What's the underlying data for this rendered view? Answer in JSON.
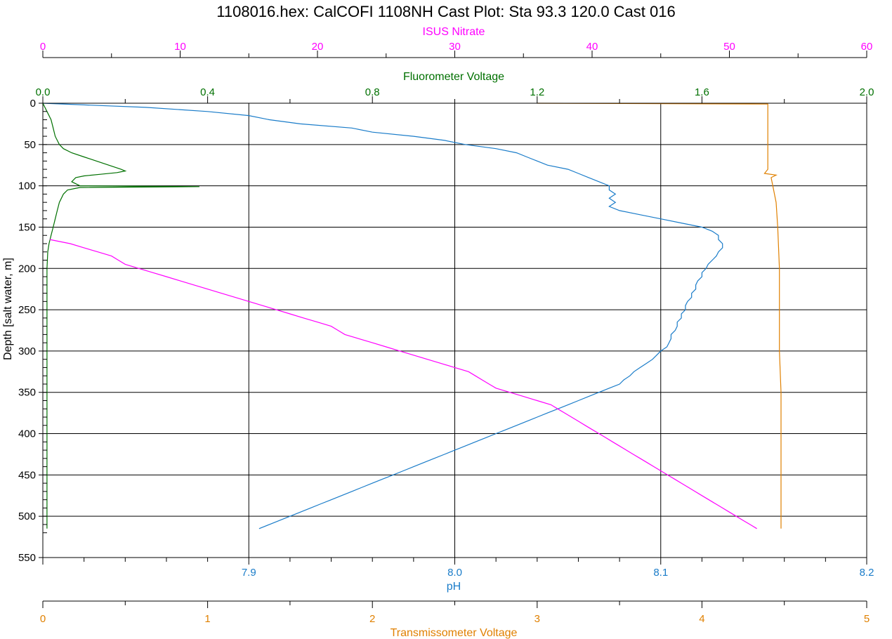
{
  "chart_data": {
    "type": "line",
    "title": "1108016.hex: CalCOFI 1108NH Cast Plot: Sta 93.3 120.0 Cast 016",
    "y_axis": {
      "label": "Depth [salt water, m]",
      "range": [
        0,
        550
      ],
      "ticks": [
        0,
        50,
        100,
        150,
        200,
        250,
        300,
        350,
        400,
        450,
        500,
        550
      ],
      "inverted": true
    },
    "x_axes": [
      {
        "name": "isus",
        "label": "ISUS Nitrate",
        "position": "top",
        "color": "#ff00ff",
        "range": [
          0,
          60
        ],
        "tick_labels": [
          "0",
          "10",
          "20",
          "30",
          "40",
          "50",
          "60"
        ]
      },
      {
        "name": "fluor",
        "label": "Fluorometer Voltage",
        "position": "top",
        "color": "#007000",
        "range": [
          0,
          2.0
        ],
        "tick_labels": [
          "0.0",
          "0.4",
          "0.8",
          "1.2",
          "1.6",
          "2.0"
        ]
      },
      {
        "name": "ph",
        "label": "pH",
        "position": "bottom",
        "color": "#1a7cc9",
        "range": [
          7.8,
          8.2
        ],
        "tick_labels": [
          "7.9",
          "8.0",
          "8.1",
          "8.2"
        ]
      },
      {
        "name": "trans",
        "label": "Transmissometer Voltage",
        "position": "bottom",
        "color": "#e08000",
        "range": [
          0,
          5
        ],
        "tick_labels": [
          "0",
          "1",
          "2",
          "3",
          "4",
          "5"
        ]
      }
    ],
    "grid": true,
    "legend": "none",
    "series": [
      {
        "axis": "ph",
        "color": "#1a7cc9",
        "points": [
          [
            0,
            7.8
          ],
          [
            2,
            7.82
          ],
          [
            5,
            7.85
          ],
          [
            10,
            7.88
          ],
          [
            15,
            7.9
          ],
          [
            20,
            7.91
          ],
          [
            25,
            7.925
          ],
          [
            30,
            7.95
          ],
          [
            35,
            7.96
          ],
          [
            40,
            7.98
          ],
          [
            45,
            7.995
          ],
          [
            50,
            8.005
          ],
          [
            55,
            8.02
          ],
          [
            60,
            8.03
          ],
          [
            65,
            8.035
          ],
          [
            70,
            8.04
          ],
          [
            75,
            8.045
          ],
          [
            80,
            8.055
          ],
          [
            85,
            8.06
          ],
          [
            90,
            8.065
          ],
          [
            95,
            8.07
          ],
          [
            100,
            8.075
          ],
          [
            105,
            8.075
          ],
          [
            110,
            8.078
          ],
          [
            115,
            8.075
          ],
          [
            120,
            8.078
          ],
          [
            125,
            8.075
          ],
          [
            130,
            8.08
          ],
          [
            135,
            8.09
          ],
          [
            140,
            8.1
          ],
          [
            145,
            8.11
          ],
          [
            150,
            8.12
          ],
          [
            155,
            8.125
          ],
          [
            160,
            8.128
          ],
          [
            165,
            8.128
          ],
          [
            170,
            8.13
          ],
          [
            175,
            8.13
          ],
          [
            180,
            8.128
          ],
          [
            185,
            8.127
          ],
          [
            190,
            8.125
          ],
          [
            195,
            8.123
          ],
          [
            200,
            8.122
          ],
          [
            205,
            8.12
          ],
          [
            210,
            8.12
          ],
          [
            215,
            8.118
          ],
          [
            220,
            8.117
          ],
          [
            225,
            8.117
          ],
          [
            230,
            8.115
          ],
          [
            235,
            8.115
          ],
          [
            240,
            8.113
          ],
          [
            245,
            8.112
          ],
          [
            250,
            8.112
          ],
          [
            255,
            8.11
          ],
          [
            260,
            8.11
          ],
          [
            265,
            8.108
          ],
          [
            270,
            8.108
          ],
          [
            275,
            8.107
          ],
          [
            280,
            8.105
          ],
          [
            285,
            8.105
          ],
          [
            290,
            8.104
          ],
          [
            295,
            8.103
          ],
          [
            300,
            8.1
          ],
          [
            305,
            8.098
          ],
          [
            310,
            8.096
          ],
          [
            315,
            8.093
          ],
          [
            320,
            8.09
          ],
          [
            325,
            8.087
          ],
          [
            330,
            8.085
          ],
          [
            335,
            8.082
          ],
          [
            340,
            8.08
          ],
          [
            345,
            8.075
          ],
          [
            350,
            8.07
          ],
          [
            355,
            8.065
          ],
          [
            360,
            8.06
          ],
          [
            365,
            8.055
          ],
          [
            370,
            8.05
          ],
          [
            375,
            8.045
          ],
          [
            380,
            8.04
          ],
          [
            385,
            8.035
          ],
          [
            390,
            8.03
          ],
          [
            395,
            8.025
          ],
          [
            400,
            8.02
          ],
          [
            405,
            8.015
          ],
          [
            410,
            8.01
          ],
          [
            415,
            8.005
          ],
          [
            420,
            8.0
          ],
          [
            425,
            7.995
          ],
          [
            430,
            7.99
          ],
          [
            435,
            7.985
          ],
          [
            440,
            7.98
          ],
          [
            445,
            7.975
          ],
          [
            450,
            7.97
          ],
          [
            455,
            7.965
          ],
          [
            460,
            7.96
          ],
          [
            465,
            7.955
          ],
          [
            470,
            7.95
          ],
          [
            475,
            7.945
          ],
          [
            480,
            7.94
          ],
          [
            485,
            7.935
          ],
          [
            490,
            7.93
          ],
          [
            495,
            7.925
          ],
          [
            500,
            7.92
          ],
          [
            505,
            7.915
          ],
          [
            510,
            7.91
          ],
          [
            515,
            7.905
          ]
        ]
      },
      {
        "axis": "fluor",
        "color": "#007000",
        "points": [
          [
            0,
            0.0
          ],
          [
            10,
            0.01
          ],
          [
            20,
            0.02
          ],
          [
            30,
            0.025
          ],
          [
            40,
            0.03
          ],
          [
            50,
            0.04
          ],
          [
            55,
            0.05
          ],
          [
            60,
            0.07
          ],
          [
            65,
            0.1
          ],
          [
            70,
            0.13
          ],
          [
            75,
            0.16
          ],
          [
            80,
            0.19
          ],
          [
            82,
            0.2
          ],
          [
            84,
            0.18
          ],
          [
            86,
            0.14
          ],
          [
            88,
            0.1
          ],
          [
            90,
            0.08
          ],
          [
            95,
            0.07
          ],
          [
            100,
            0.09
          ],
          [
            101,
            0.38
          ],
          [
            102,
            0.09
          ],
          [
            105,
            0.06
          ],
          [
            110,
            0.05
          ],
          [
            115,
            0.045
          ],
          [
            120,
            0.04
          ],
          [
            130,
            0.035
          ],
          [
            140,
            0.03
          ],
          [
            150,
            0.025
          ],
          [
            160,
            0.02
          ],
          [
            170,
            0.015
          ],
          [
            180,
            0.012
          ],
          [
            200,
            0.01
          ],
          [
            250,
            0.01
          ],
          [
            300,
            0.01
          ],
          [
            350,
            0.01
          ],
          [
            400,
            0.01
          ],
          [
            450,
            0.01
          ],
          [
            500,
            0.01
          ],
          [
            515,
            0.01
          ]
        ]
      },
      {
        "axis": "isus",
        "color": "#ff00ff",
        "points": [
          [
            165,
            0.5
          ],
          [
            170,
            2
          ],
          [
            175,
            3
          ],
          [
            180,
            4
          ],
          [
            185,
            5
          ],
          [
            190,
            5.5
          ],
          [
            195,
            6
          ],
          [
            200,
            7
          ],
          [
            205,
            8
          ],
          [
            210,
            9
          ],
          [
            215,
            10
          ],
          [
            220,
            11
          ],
          [
            225,
            12
          ],
          [
            230,
            13
          ],
          [
            235,
            14
          ],
          [
            240,
            15
          ],
          [
            245,
            16
          ],
          [
            250,
            17
          ],
          [
            255,
            18
          ],
          [
            260,
            19
          ],
          [
            265,
            20
          ],
          [
            270,
            21
          ],
          [
            275,
            21.5
          ],
          [
            280,
            22
          ],
          [
            285,
            23
          ],
          [
            290,
            24
          ],
          [
            295,
            25
          ],
          [
            300,
            26
          ],
          [
            305,
            27
          ],
          [
            310,
            28
          ],
          [
            315,
            29
          ],
          [
            320,
            30
          ],
          [
            325,
            31
          ],
          [
            330,
            31.5
          ],
          [
            335,
            32
          ],
          [
            340,
            32.5
          ],
          [
            345,
            33
          ],
          [
            350,
            34
          ],
          [
            355,
            35
          ],
          [
            360,
            36
          ],
          [
            365,
            37
          ],
          [
            370,
            37.5
          ],
          [
            375,
            38
          ],
          [
            380,
            38.5
          ],
          [
            385,
            39
          ],
          [
            390,
            39.5
          ],
          [
            395,
            40
          ],
          [
            400,
            40.5
          ],
          [
            405,
            41
          ],
          [
            410,
            41.5
          ],
          [
            415,
            42
          ],
          [
            420,
            42.5
          ],
          [
            425,
            43
          ],
          [
            430,
            43.5
          ],
          [
            435,
            44
          ],
          [
            440,
            44.5
          ],
          [
            445,
            45
          ],
          [
            450,
            45.5
          ],
          [
            455,
            46
          ],
          [
            460,
            46.5
          ],
          [
            465,
            47
          ],
          [
            470,
            47.5
          ],
          [
            475,
            48
          ],
          [
            480,
            48.5
          ],
          [
            485,
            49
          ],
          [
            490,
            49.5
          ],
          [
            495,
            50
          ],
          [
            500,
            50.5
          ],
          [
            505,
            51
          ],
          [
            510,
            51.5
          ],
          [
            515,
            52
          ]
        ]
      },
      {
        "axis": "trans",
        "color": "#e08000",
        "points": [
          [
            0,
            3.0
          ],
          [
            0.5,
            3.8
          ],
          [
            1,
            4.4
          ],
          [
            2,
            4.4
          ],
          [
            5,
            4.4
          ],
          [
            10,
            4.4
          ],
          [
            20,
            4.4
          ],
          [
            30,
            4.4
          ],
          [
            40,
            4.4
          ],
          [
            50,
            4.4
          ],
          [
            60,
            4.4
          ],
          [
            70,
            4.4
          ],
          [
            80,
            4.4
          ],
          [
            85,
            4.38
          ],
          [
            87,
            4.45
          ],
          [
            90,
            4.42
          ],
          [
            100,
            4.43
          ],
          [
            120,
            4.45
          ],
          [
            150,
            4.46
          ],
          [
            200,
            4.47
          ],
          [
            250,
            4.47
          ],
          [
            300,
            4.47
          ],
          [
            350,
            4.48
          ],
          [
            400,
            4.48
          ],
          [
            450,
            4.48
          ],
          [
            500,
            4.48
          ],
          [
            515,
            4.48
          ]
        ]
      }
    ]
  }
}
